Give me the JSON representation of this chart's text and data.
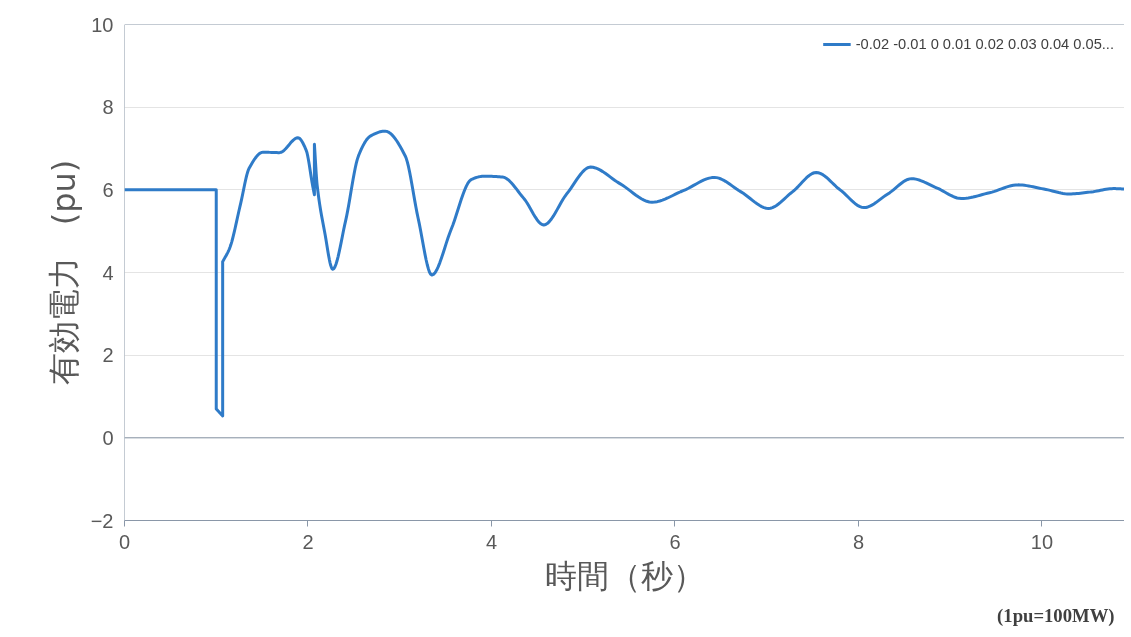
{
  "chart_data": {
    "type": "line",
    "xlabel": "時間（秒）",
    "ylabel": "有効電力　(pu)",
    "annotations": [
      "(1pu=100MW)"
    ],
    "xlim": [
      0,
      10.9
    ],
    "ylim": [
      -2,
      10
    ],
    "xticks": [
      0,
      2,
      4,
      6,
      8,
      10
    ],
    "yticks": [
      -2,
      0,
      2,
      4,
      6,
      8,
      10
    ],
    "grid": "y",
    "legend": "top right",
    "marker": "none",
    "line_style": "solid",
    "series": [
      {
        "name": "-0.02 -0.01 0 0.01 0.02 0.03 0.04 0.05...",
        "color": "#2f7bc8",
        "x": [
          0,
          1.0,
          1.0,
          1.07,
          1.07,
          1.15,
          1.26,
          1.36,
          1.51,
          1.69,
          1.89,
          1.98,
          2.05,
          2.07,
          2.07,
          2.1,
          2.18,
          2.27,
          2.41,
          2.55,
          2.68,
          2.84,
          3.06,
          3.2,
          3.35,
          3.56,
          3.78,
          3.92,
          4.12,
          4.35,
          4.57,
          4.82,
          5.08,
          5.4,
          5.75,
          6.09,
          6.43,
          6.72,
          7.02,
          7.28,
          7.54,
          7.8,
          8.06,
          8.32,
          8.58,
          8.85,
          9.12,
          9.43,
          9.74,
          10.02,
          10.3,
          10.54,
          10.78,
          10.9
        ],
        "values": [
          6,
          6,
          0.7,
          0.53,
          4.26,
          4.61,
          5.61,
          6.53,
          6.91,
          6.9,
          7.26,
          6.96,
          6.11,
          5.88,
          7.1,
          6.11,
          5.0,
          4.08,
          5.25,
          6.82,
          7.3,
          7.42,
          6.82,
          5.32,
          3.94,
          5.04,
          6.25,
          6.33,
          6.31,
          5.8,
          5.15,
          5.9,
          6.55,
          6.15,
          5.7,
          5.98,
          6.3,
          5.95,
          5.55,
          5.95,
          6.42,
          6.0,
          5.57,
          5.9,
          6.27,
          6.05,
          5.79,
          5.93,
          6.12,
          6.02,
          5.9,
          5.95,
          6.03,
          6.02
        ]
      }
    ]
  }
}
